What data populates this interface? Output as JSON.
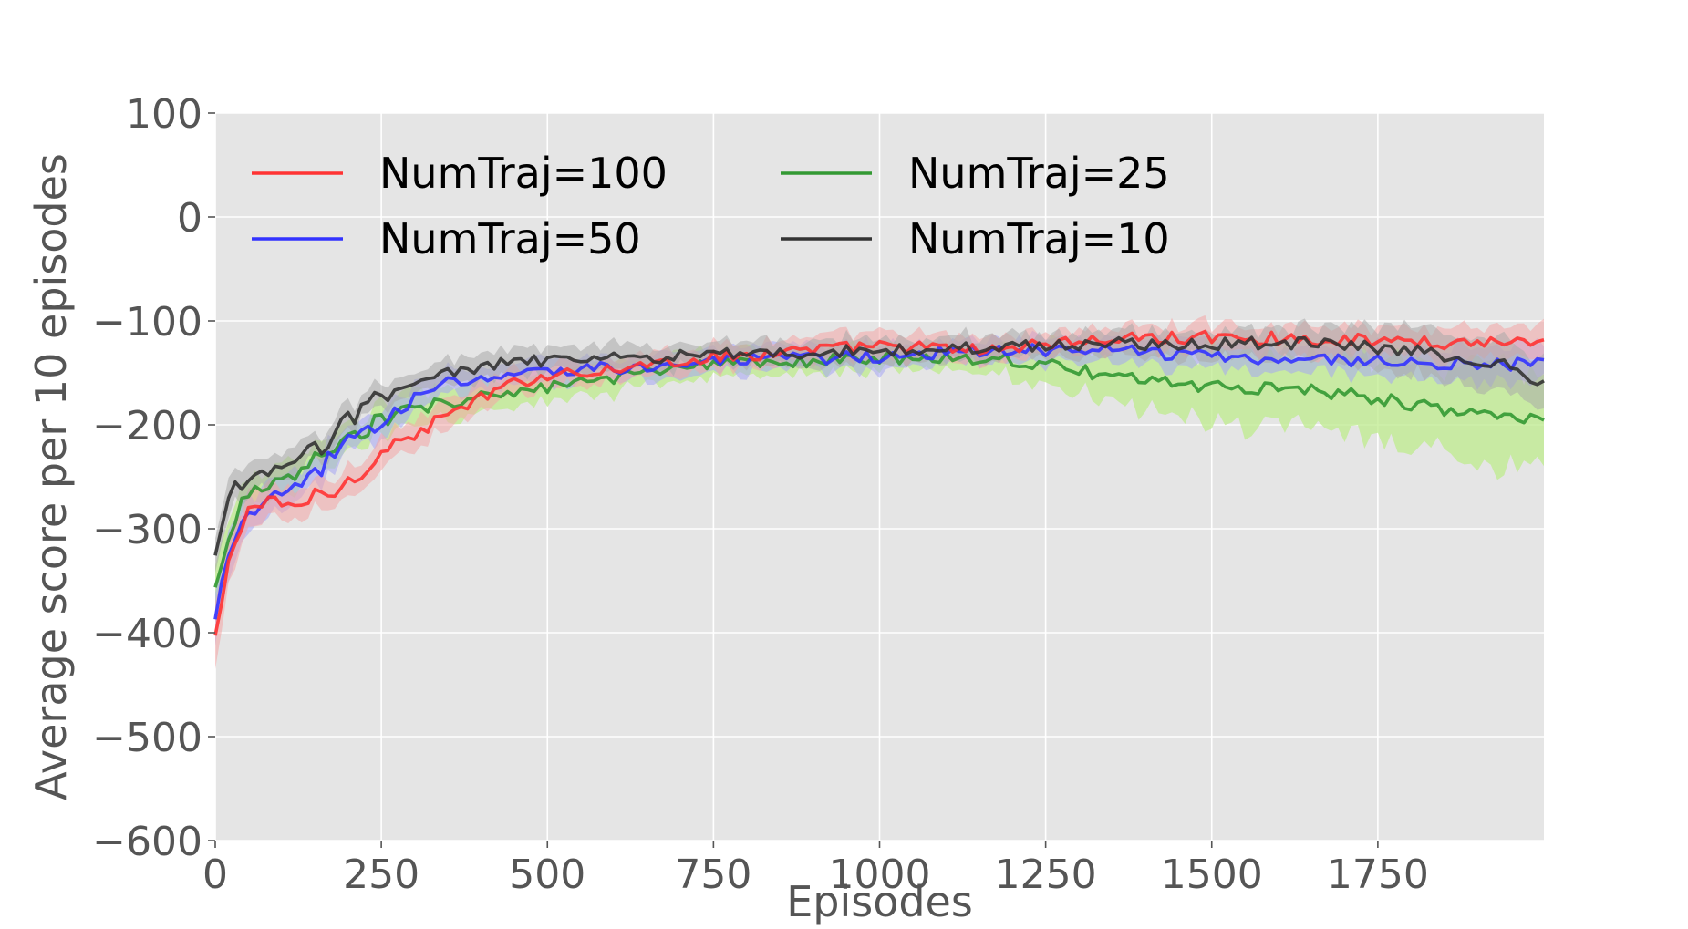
{
  "chart_data": {
    "type": "line",
    "title": "",
    "xlabel": "Episodes",
    "ylabel": "Average score per 10 episodes",
    "xlim": [
      0,
      2000
    ],
    "ylim": [
      -600,
      100
    ],
    "xticks": [
      0,
      250,
      500,
      750,
      1000,
      1250,
      1500,
      1750
    ],
    "xtick_labels": [
      "0",
      "250",
      "500",
      "750",
      "1000",
      "1250",
      "1500",
      "1750"
    ],
    "yticks": [
      100,
      0,
      -100,
      -200,
      -300,
      -400,
      -500,
      -600
    ],
    "ytick_labels": [
      "100",
      "0",
      "−100",
      "−200",
      "−300",
      "−400",
      "−500",
      "−600"
    ],
    "grid": true,
    "background": "#e5e5e5",
    "legend_position": "top-left",
    "legend_columns": 2,
    "x": [
      0,
      25,
      50,
      75,
      100,
      125,
      150,
      175,
      200,
      250,
      300,
      350,
      400,
      450,
      500,
      550,
      600,
      650,
      700,
      750,
      800,
      850,
      900,
      950,
      1000,
      1050,
      1100,
      1150,
      1200,
      1250,
      1300,
      1350,
      1400,
      1450,
      1500,
      1550,
      1600,
      1650,
      1700,
      1750,
      1800,
      1850,
      1900,
      1950,
      2000
    ],
    "series": [
      {
        "name": "NumTraj=100",
        "color": "#ff3333",
        "band_color": "#f4a6a6",
        "values": [
          -405,
          -320,
          -280,
          -275,
          -280,
          -275,
          -270,
          -265,
          -255,
          -225,
          -210,
          -190,
          -175,
          -160,
          -152,
          -148,
          -147,
          -142,
          -138,
          -135,
          -133,
          -130,
          -128,
          -126,
          -124,
          -125,
          -127,
          -128,
          -125,
          -122,
          -120,
          -118,
          -117,
          -116,
          -115,
          -116,
          -117,
          -118,
          -118,
          -119,
          -120,
          -121,
          -120,
          -120,
          -118
        ],
        "band": [
          25,
          22,
          18,
          16,
          15,
          15,
          15,
          15,
          15,
          14,
          14,
          13,
          13,
          12,
          12,
          12,
          12,
          12,
          12,
          12,
          12,
          12,
          12,
          12,
          12,
          12,
          12,
          12,
          12,
          12,
          12,
          12,
          12,
          12,
          12,
          12,
          12,
          13,
          13,
          14,
          14,
          15,
          16,
          16,
          16
        ]
      },
      {
        "name": "NumTraj=50",
        "color": "#3333ff",
        "band_color": "#a6a6f4",
        "values": [
          -390,
          -310,
          -285,
          -275,
          -270,
          -260,
          -250,
          -230,
          -215,
          -195,
          -175,
          -160,
          -158,
          -152,
          -148,
          -146,
          -145,
          -143,
          -142,
          -140,
          -138,
          -137,
          -136,
          -135,
          -134,
          -132,
          -130,
          -130,
          -129,
          -128,
          -127,
          -128,
          -130,
          -132,
          -133,
          -135,
          -136,
          -137,
          -138,
          -139,
          -140,
          -140,
          -141,
          -142,
          -142
        ],
        "band": [
          22,
          20,
          16,
          15,
          14,
          14,
          14,
          14,
          13,
          13,
          12,
          12,
          12,
          12,
          12,
          12,
          12,
          12,
          12,
          12,
          12,
          12,
          12,
          12,
          12,
          12,
          12,
          12,
          12,
          12,
          12,
          12,
          12,
          12,
          12,
          12,
          12,
          13,
          13,
          14,
          14,
          15,
          16,
          16,
          16
        ]
      },
      {
        "name": "NumTraj=25",
        "color": "#339933",
        "band_color": "#bdeb8c",
        "values": [
          -360,
          -290,
          -270,
          -265,
          -255,
          -245,
          -235,
          -225,
          -215,
          -195,
          -185,
          -178,
          -172,
          -168,
          -165,
          -160,
          -155,
          -150,
          -146,
          -143,
          -141,
          -140,
          -139,
          -138,
          -137,
          -136,
          -135,
          -136,
          -138,
          -142,
          -148,
          -153,
          -157,
          -160,
          -163,
          -164,
          -165,
          -167,
          -170,
          -175,
          -180,
          -185,
          -190,
          -192,
          -193
        ],
        "band": [
          20,
          18,
          17,
          16,
          15,
          15,
          15,
          15,
          15,
          15,
          15,
          15,
          15,
          15,
          15,
          15,
          14,
          13,
          13,
          12,
          12,
          12,
          12,
          12,
          12,
          12,
          12,
          13,
          15,
          18,
          22,
          26,
          30,
          33,
          35,
          36,
          37,
          38,
          39,
          40,
          42,
          44,
          46,
          46,
          46
        ]
      },
      {
        "name": "NumTraj=10",
        "color": "#333333",
        "band_color": "#aaaaaa",
        "values": [
          -330,
          -262,
          -255,
          -248,
          -245,
          -235,
          -225,
          -210,
          -195,
          -170,
          -160,
          -150,
          -145,
          -140,
          -138,
          -137,
          -136,
          -135,
          -134,
          -133,
          -132,
          -131,
          -130,
          -129,
          -128,
          -127,
          -126,
          -126,
          -125,
          -124,
          -123,
          -122,
          -122,
          -122,
          -122,
          -121,
          -121,
          -122,
          -124,
          -126,
          -129,
          -133,
          -138,
          -143,
          -160
        ],
        "band": [
          18,
          15,
          14,
          13,
          13,
          13,
          13,
          13,
          13,
          12,
          12,
          12,
          12,
          12,
          12,
          12,
          12,
          12,
          12,
          12,
          12,
          12,
          12,
          12,
          12,
          12,
          12,
          12,
          12,
          12,
          12,
          12,
          12,
          12,
          12,
          13,
          14,
          15,
          17,
          19,
          21,
          23,
          24,
          24,
          24
        ]
      }
    ]
  }
}
